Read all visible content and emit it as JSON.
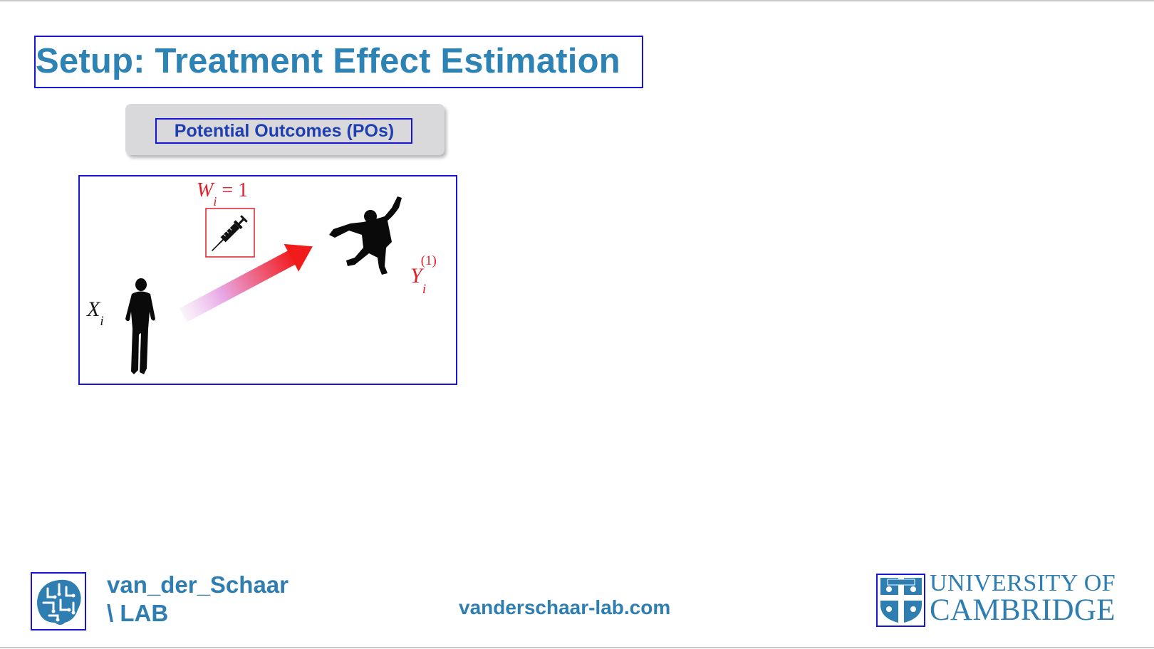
{
  "slide": {
    "title": "Setup: Treatment Effect Estimation",
    "section_label": "Potential Outcomes (POs)"
  },
  "figure": {
    "treatment_var": "W",
    "treatment_sub": "i",
    "treatment_eq": " = 1",
    "covariate_var": "X",
    "covariate_sub": "i",
    "outcome_var": "Y",
    "outcome_sub": "i",
    "outcome_sup": "(1)",
    "treatment_icon": "syringe-icon",
    "colors": {
      "treatment": "#e01f2a",
      "arrow_start": "#ecc1ee",
      "arrow_end": "#f21b1b"
    }
  },
  "footer": {
    "lab_name_line1": "van_der_Schaar",
    "lab_name_line2": "\\ LAB",
    "website": "vanderschaar-lab.com",
    "university_line1": "UNIVERSITY OF",
    "university_line2": "CAMBRIDGE"
  },
  "theme": {
    "accent": "#2e83b5",
    "highlight_box": "#1a14d6"
  }
}
